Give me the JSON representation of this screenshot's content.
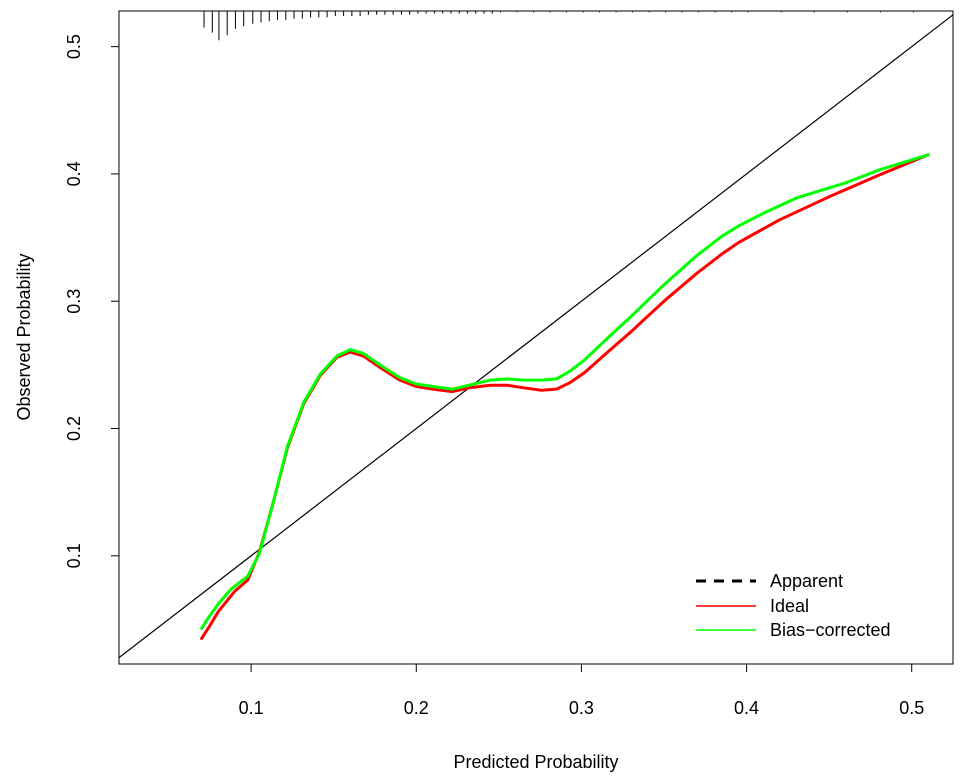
{
  "chart_data": {
    "type": "line",
    "title": "",
    "xlabel": "Predicted Probability",
    "ylabel": "Observed Probability",
    "xlim": [
      0.02,
      0.525
    ],
    "ylim": [
      0.015,
      0.528
    ],
    "x_ticks": [
      0.1,
      0.2,
      0.3,
      0.4,
      0.5
    ],
    "y_ticks": [
      0.1,
      0.2,
      0.3,
      0.4,
      0.5
    ],
    "x_tick_labels": [
      "0.1",
      "0.2",
      "0.3",
      "0.4",
      "0.5"
    ],
    "y_tick_labels": [
      "0.1",
      "0.2",
      "0.3",
      "0.4",
      "0.5"
    ],
    "grid": false,
    "legend_position": "bottom-right",
    "legend": [
      {
        "label": "Apparent",
        "color": "#000000",
        "style": "dashed"
      },
      {
        "label": "Ideal",
        "color": "#ff0000",
        "style": "solid"
      },
      {
        "label": "Bias−corrected",
        "color": "#00ff00",
        "style": "solid"
      }
    ],
    "reference_line": {
      "x": [
        0.02,
        0.525
      ],
      "y": [
        0.02,
        0.525
      ],
      "color": "#000000"
    },
    "series": [
      {
        "color": "#ff0000",
        "x": [
          0.07,
          0.075,
          0.08,
          0.09,
          0.098,
          0.105,
          0.113,
          0.122,
          0.132,
          0.142,
          0.152,
          0.16,
          0.168,
          0.178,
          0.19,
          0.2,
          0.21,
          0.222,
          0.232,
          0.245,
          0.255,
          0.265,
          0.276,
          0.285,
          0.293,
          0.302,
          0.315,
          0.33,
          0.35,
          0.37,
          0.385,
          0.395,
          0.42,
          0.45,
          0.48,
          0.51
        ],
        "values": [
          0.035,
          0.045,
          0.056,
          0.072,
          0.081,
          0.103,
          0.14,
          0.185,
          0.22,
          0.242,
          0.256,
          0.26,
          0.257,
          0.248,
          0.238,
          0.233,
          0.231,
          0.229,
          0.232,
          0.234,
          0.234,
          0.232,
          0.23,
          0.231,
          0.236,
          0.244,
          0.259,
          0.276,
          0.3,
          0.322,
          0.337,
          0.346,
          0.364,
          0.382,
          0.399,
          0.415
        ]
      },
      {
        "color": "#00ff00",
        "x": [
          0.07,
          0.075,
          0.08,
          0.088,
          0.098,
          0.105,
          0.113,
          0.122,
          0.132,
          0.142,
          0.152,
          0.16,
          0.168,
          0.178,
          0.19,
          0.2,
          0.21,
          0.222,
          0.232,
          0.245,
          0.255,
          0.265,
          0.276,
          0.285,
          0.293,
          0.302,
          0.315,
          0.33,
          0.35,
          0.37,
          0.385,
          0.395,
          0.41,
          0.43,
          0.46,
          0.48,
          0.51
        ],
        "values": [
          0.043,
          0.053,
          0.062,
          0.074,
          0.084,
          0.102,
          0.14,
          0.186,
          0.221,
          0.243,
          0.257,
          0.262,
          0.259,
          0.25,
          0.24,
          0.235,
          0.233,
          0.231,
          0.234,
          0.238,
          0.239,
          0.238,
          0.238,
          0.239,
          0.245,
          0.254,
          0.27,
          0.288,
          0.313,
          0.336,
          0.351,
          0.359,
          0.369,
          0.381,
          0.393,
          0.403,
          0.415
        ]
      }
    ],
    "rug_ticks": [
      {
        "x": 0.0715,
        "h": 0.013
      },
      {
        "x": 0.0765,
        "h": 0.017
      },
      {
        "x": 0.0805,
        "h": 0.023
      },
      {
        "x": 0.0855,
        "h": 0.019
      },
      {
        "x": 0.0905,
        "h": 0.014
      },
      {
        "x": 0.0955,
        "h": 0.012
      },
      {
        "x": 0.101,
        "h": 0.01
      },
      {
        "x": 0.106,
        "h": 0.009
      },
      {
        "x": 0.111,
        "h": 0.008
      },
      {
        "x": 0.116,
        "h": 0.007
      },
      {
        "x": 0.121,
        "h": 0.007
      },
      {
        "x": 0.126,
        "h": 0.006
      },
      {
        "x": 0.131,
        "h": 0.006
      },
      {
        "x": 0.136,
        "h": 0.005
      },
      {
        "x": 0.141,
        "h": 0.005
      },
      {
        "x": 0.146,
        "h": 0.005
      },
      {
        "x": 0.151,
        "h": 0.004
      },
      {
        "x": 0.156,
        "h": 0.004
      },
      {
        "x": 0.161,
        "h": 0.004
      },
      {
        "x": 0.166,
        "h": 0.004
      },
      {
        "x": 0.171,
        "h": 0.003
      },
      {
        "x": 0.176,
        "h": 0.003
      },
      {
        "x": 0.181,
        "h": 0.003
      },
      {
        "x": 0.186,
        "h": 0.003
      },
      {
        "x": 0.191,
        "h": 0.003
      },
      {
        "x": 0.196,
        "h": 0.003
      },
      {
        "x": 0.201,
        "h": 0.002
      },
      {
        "x": 0.206,
        "h": 0.002
      },
      {
        "x": 0.211,
        "h": 0.002
      },
      {
        "x": 0.216,
        "h": 0.002
      },
      {
        "x": 0.221,
        "h": 0.002
      },
      {
        "x": 0.226,
        "h": 0.002
      },
      {
        "x": 0.231,
        "h": 0.002
      },
      {
        "x": 0.236,
        "h": 0.002
      },
      {
        "x": 0.241,
        "h": 0.002
      },
      {
        "x": 0.246,
        "h": 0.002
      },
      {
        "x": 0.251,
        "h": 0.001
      },
      {
        "x": 0.261,
        "h": 0.001
      },
      {
        "x": 0.271,
        "h": 0.001
      },
      {
        "x": 0.281,
        "h": 0.001
      },
      {
        "x": 0.291,
        "h": 0.001
      },
      {
        "x": 0.301,
        "h": 0.001
      },
      {
        "x": 0.311,
        "h": 0.001
      },
      {
        "x": 0.321,
        "h": 0.001
      },
      {
        "x": 0.331,
        "h": 0.001
      },
      {
        "x": 0.341,
        "h": 0.001
      },
      {
        "x": 0.351,
        "h": 0.001
      },
      {
        "x": 0.361,
        "h": 0.001
      },
      {
        "x": 0.371,
        "h": 0.001
      },
      {
        "x": 0.381,
        "h": 0.001
      },
      {
        "x": 0.391,
        "h": 0.001
      },
      {
        "x": 0.401,
        "h": 0.001
      },
      {
        "x": 0.421,
        "h": 0.001
      },
      {
        "x": 0.441,
        "h": 0.001
      },
      {
        "x": 0.461,
        "h": 0.001
      },
      {
        "x": 0.481,
        "h": 0.001
      },
      {
        "x": 0.501,
        "h": 0.001
      }
    ]
  }
}
